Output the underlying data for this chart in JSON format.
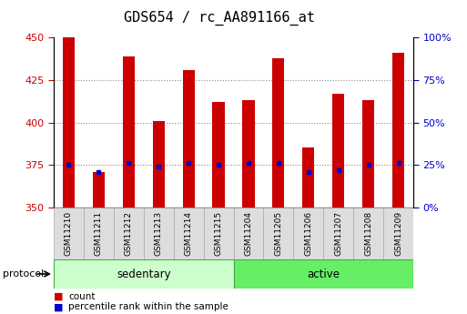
{
  "title": "GDS654 / rc_AA891166_at",
  "samples": [
    "GSM11210",
    "GSM11211",
    "GSM11212",
    "GSM11213",
    "GSM11214",
    "GSM11215",
    "GSM11204",
    "GSM11205",
    "GSM11206",
    "GSM11207",
    "GSM11208",
    "GSM11209"
  ],
  "red_values": [
    450,
    371,
    439,
    401,
    431,
    412,
    413,
    438,
    385,
    417,
    413,
    441
  ],
  "blue_values": [
    375,
    371,
    376,
    374,
    376,
    375,
    376,
    376,
    371,
    372,
    375,
    376
  ],
  "bar_bottom": 350,
  "ylim": [
    350,
    450
  ],
  "y_ticks_left": [
    350,
    375,
    400,
    425,
    450
  ],
  "y_ticks_right": [
    0,
    25,
    50,
    75,
    100
  ],
  "groups": [
    {
      "label": "sedentary",
      "start": 0,
      "end": 6,
      "color": "#ccffcc"
    },
    {
      "label": "active",
      "start": 6,
      "end": 12,
      "color": "#66ee66"
    }
  ],
  "protocol_label": "protocol",
  "legend_items": [
    {
      "color": "#cc0000",
      "label": "count"
    },
    {
      "color": "#0000cc",
      "label": "percentile rank within the sample"
    }
  ],
  "left_tick_color": "#cc0000",
  "right_tick_color": "#0000cc",
  "bar_color": "#cc0000",
  "dot_color": "#0000cc",
  "grid_color": "#888888",
  "title_fontsize": 11,
  "tick_fontsize": 8,
  "label_fontsize": 8.5,
  "sample_fontsize": 6.5,
  "bar_width": 0.4
}
